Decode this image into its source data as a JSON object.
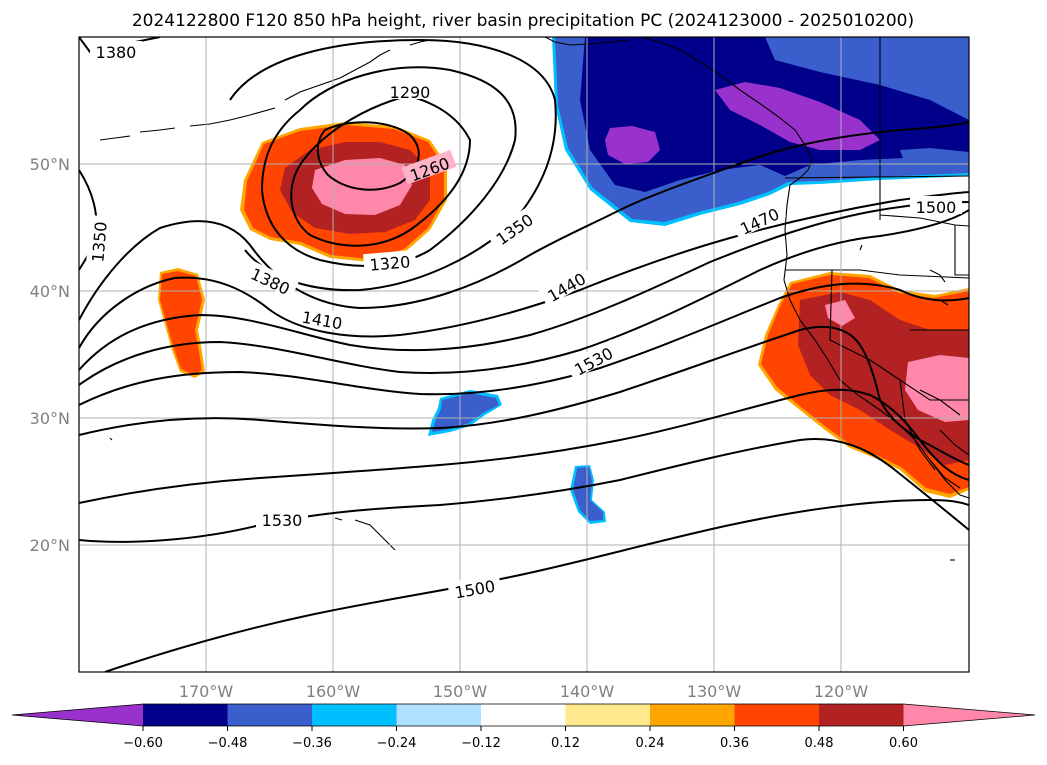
{
  "title": "2024122800 F120 850 hPa height, river basin precipitation PC (2024123000 - 2025010200)",
  "lon_ticks": [
    "170°W",
    "160°W",
    "150°W",
    "140°W",
    "130°W",
    "120°W"
  ],
  "lat_ticks": [
    "50°N",
    "40°N",
    "30°N",
    "20°N"
  ],
  "colorbar": {
    "ticks": [
      "−0.60",
      "−0.48",
      "−0.36",
      "−0.24",
      "−0.12",
      "0.12",
      "0.24",
      "0.36",
      "0.48",
      "0.60"
    ],
    "colors": [
      "#9932cc",
      "#00008b",
      "#3a5fcd",
      "#00bfff",
      "#b0e0ff",
      "#ffffff",
      "#ffe98c",
      "#ffa500",
      "#ff4500",
      "#b22222",
      "#ff88aa"
    ]
  },
  "contour_labels": {
    "l1380_nw": "1380",
    "l1290": "1290",
    "l1260": "1260",
    "l1350_w": "1350",
    "l1350_c": "1350",
    "l1320": "1320",
    "l1380": "1380",
    "l1410": "1410",
    "l1440": "1440",
    "l1470": "1470",
    "l1500_ne": "1500",
    "l1530": "1530",
    "l1530_s": "1530",
    "l1500_s": "1500"
  }
}
